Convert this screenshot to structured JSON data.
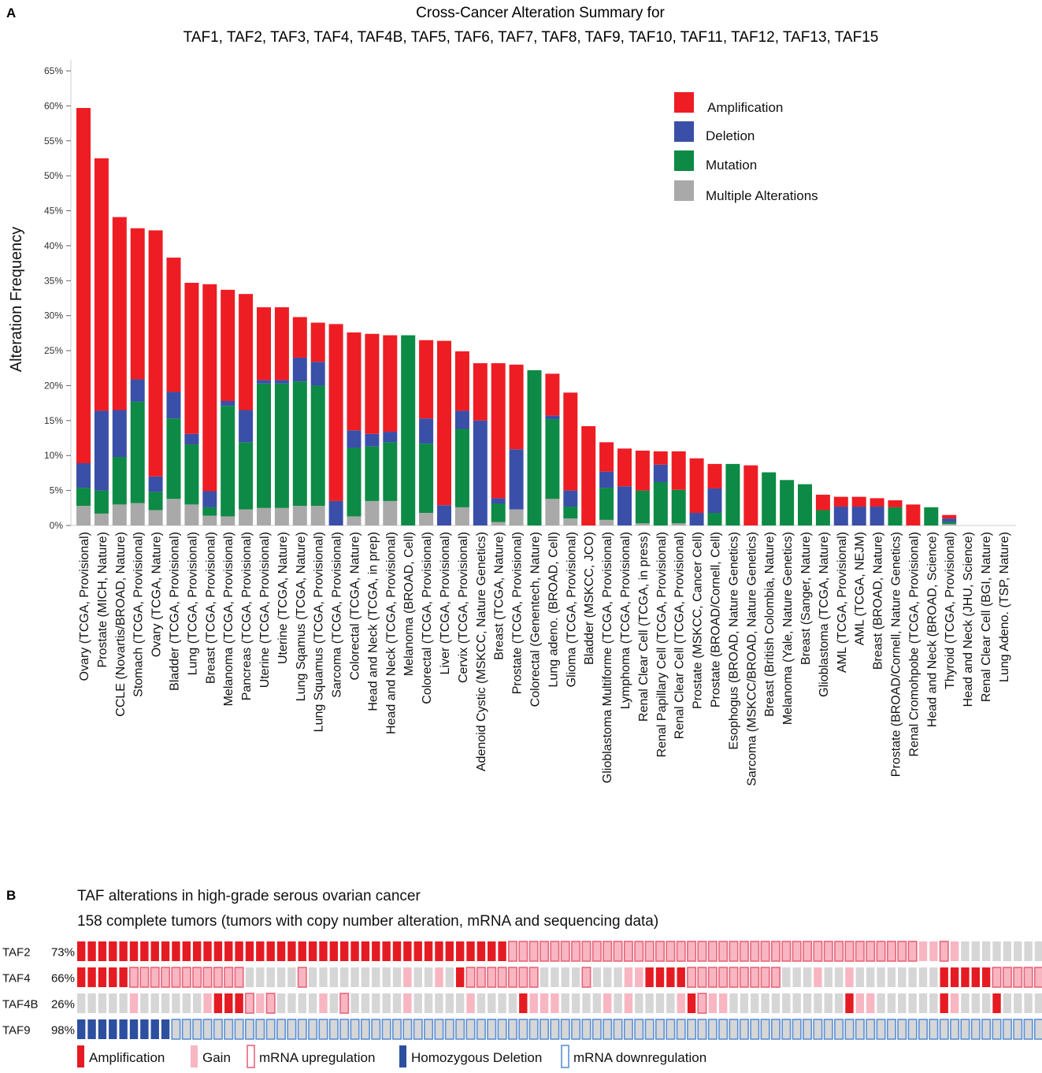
{
  "panel_a": {
    "letter": "A",
    "colors": {
      "amp": "#ee1d24",
      "del": "#3a4fa8",
      "mut": "#0d8a45",
      "multi": "#a9a9a9"
    },
    "chart_data": {
      "type": "bar",
      "stacked": true,
      "title": "Cross-Cancer Alteration Summary for",
      "subtitle": "TAF1, TAF2, TAF3, TAF4, TAF4B, TAF5, TAF6, TAF7, TAF8, TAF9, TAF10, TAF11, TAF12, TAF13, TAF15",
      "ylabel": "Alteration Frequency",
      "ylim": [
        0,
        65
      ],
      "yticks": [
        "0%",
        "5%",
        "10%",
        "15%",
        "20%",
        "25%",
        "30%",
        "35%",
        "40%",
        "45%",
        "50%",
        "55%",
        "60%",
        "65%"
      ],
      "legend": {
        "position": "top-right",
        "entries": [
          "Amplification",
          "Deletion",
          "Mutation",
          "Multiple Alterations"
        ]
      },
      "categories": [
        "Ovary (TCGA, Provisional)",
        "Prostate (MICH, Nature)",
        "CCLE (Novartis/BROAD, Nature)",
        "Stomach (TCGA, Provisional)",
        "Ovary (TCGA, Nature)",
        "Bladder (TCGA, Provisional)",
        "Lung (TCGA, Provisional)",
        "Breast (TCGA, Provisional)",
        "Melanoma (TCGA, Provisional)",
        "Pancreas (TCGA, Provisional)",
        "Uterine (TCGA, Provisional)",
        "Uterine (TCGA, Nature)",
        "Lung Sqamus (TCGA, Nature)",
        "Lung Squamus (TCGA, Provisional)",
        "Sarcoma (TCGA, Provisional)",
        "Colorectal (TCGA, Nature)",
        "Head and Neck (TCGA, in prep)",
        "Head and Neck (TCGA, Provisional)",
        "Melanoma (BROAD, Cell)",
        "Colorectal (TCGA, Provisional)",
        "Liver (TCGA, Provisional)",
        "Cervix (TCGA, Provisional)",
        "Adenoid Cystic (MSKCC, Nature Genetics)",
        "Breast (TCGA, Nature)",
        "Prostate (TCGA, Provisional)",
        "Colorectal (Genentech, Nature)",
        "Lung adeno. (BROAD, Cell)",
        "Glioma (TCGA, Provisional)",
        "Bladder (MSKCC, JCO)",
        "Glioblastoma Multiforme (TCGA, Provisional)",
        "Lymphoma (TCGA, Provisional)",
        "Renal Clear Cell (TCGA, in press)",
        "Renal Papillary Cell (TCGA, Provisional)",
        "Renal Clear Cell (TCGA, Provisional)",
        "Prostate (MSKCC, Cancer Cell)",
        "Prostate (BROAD/Cornell, Cell)",
        "Esophogus (BROAD, Nature Genetics)",
        "Sarcoma (MSKCC/BROAD, Nature Genetics)",
        "Breast (British Colombia, Nature)",
        "Melanoma (Yale, Nature Genetics)",
        "Breast (Sanger, Nature)",
        "Glioblastoma (TCGA, Nature)",
        "AML (TCGA, Provisional)",
        "AML (TCGA, NEJM)",
        "Breast (BROAD, Nature)",
        "Prostate (BROAD/Cornell, Nature Genetics)",
        "Renal Cromohpobe (TCGA, Provisional)",
        "Head and Neck (BROAD, Science)",
        "Thyroid (TCGA, Provisional)",
        "Head and Neck (JHU, Science)",
        "Renal Clear Cell (BGI, Nature)",
        "Lung Adeno. (TSP, Nature)"
      ],
      "series": [
        {
          "name": "Multiple Alterations",
          "values": [
            2.8,
            1.7,
            3.0,
            3.2,
            2.2,
            3.8,
            3.0,
            1.4,
            1.3,
            2.3,
            2.5,
            2.5,
            2.8,
            2.8,
            0,
            1.3,
            3.5,
            3.5,
            0,
            1.8,
            0,
            2.6,
            0,
            0.5,
            2.3,
            0,
            3.8,
            1.0,
            0,
            0.8,
            0,
            0.3,
            0,
            0.3,
            0,
            0,
            0,
            0,
            0,
            0,
            0,
            0,
            0,
            0,
            0,
            0,
            0,
            0,
            0.2,
            0,
            0,
            0
          ]
        },
        {
          "name": "Mutation",
          "values": [
            2.6,
            3.3,
            6.8,
            14.5,
            2.6,
            11.5,
            8.6,
            1.2,
            15.8,
            9.6,
            17.8,
            17.8,
            17.8,
            17.2,
            0,
            9.8,
            7.8,
            8.4,
            27.2,
            9.9,
            0,
            11.2,
            0,
            2.6,
            0,
            22.2,
            11.4,
            1.7,
            0,
            4.6,
            0,
            4.7,
            6.2,
            4.8,
            0,
            1.8,
            8.8,
            0,
            7.6,
            6.5,
            5.9,
            2.2,
            0,
            0,
            0,
            2.6,
            0,
            2.6,
            0.3,
            0,
            0,
            0
          ]
        },
        {
          "name": "Deletion",
          "values": [
            3.5,
            11.4,
            6.7,
            3.2,
            2.2,
            3.8,
            1.5,
            2.3,
            0.7,
            4.6,
            0.5,
            0.5,
            3.4,
            3.4,
            3.5,
            2.5,
            1.8,
            1.5,
            0,
            3.6,
            2.9,
            2.6,
            15.0,
            0.8,
            8.6,
            0,
            0.5,
            2.3,
            0,
            2.3,
            5.6,
            0,
            2.5,
            0,
            1.8,
            3.5,
            0,
            0,
            0,
            0,
            0,
            0,
            2.7,
            2.7,
            2.7,
            0,
            0,
            0,
            0.5,
            0,
            0,
            0
          ]
        },
        {
          "name": "Amplification",
          "values": [
            50.8,
            36.1,
            27.6,
            21.6,
            35.2,
            19.2,
            21.6,
            29.6,
            15.9,
            16.6,
            10.4,
            10.4,
            5.8,
            5.6,
            25.3,
            14.0,
            14.3,
            13.8,
            0,
            11.2,
            23.5,
            8.5,
            8.2,
            19.3,
            12.1,
            0,
            6.0,
            14.0,
            14.2,
            4.2,
            5.4,
            5.7,
            1.9,
            5.5,
            7.8,
            3.5,
            0,
            8.6,
            0,
            0,
            0,
            2.2,
            1.4,
            1.4,
            1.2,
            1.0,
            3.0,
            0,
            0.5,
            0,
            0,
            0
          ]
        }
      ]
    }
  },
  "panel_b": {
    "letter": "B",
    "title": "TAF alterations in high-grade serous ovarian cancer",
    "subtitle": "158 complete tumors (tumors with copy number alteration, mRNA and sequencing data)",
    "colors": {
      "amp": "#e51b23",
      "gain": "#f7b6c2",
      "upreg_border": "#e8657a",
      "del": "#2d4fa0",
      "downreg_border": "#5b8fd6",
      "none": "#d6d6d6"
    },
    "rows": [
      {
        "gene": "TAF2",
        "pct": "73%"
      },
      {
        "gene": "TAF4",
        "pct": "66%"
      },
      {
        "gene": "TAF4B",
        "pct": "26%"
      },
      {
        "gene": "TAF9",
        "pct": "98%"
      }
    ],
    "legend": [
      "Amplification",
      "Gain",
      "mRNA upregulation",
      "Homozygous Deletion",
      "mRNA downregulation"
    ]
  }
}
